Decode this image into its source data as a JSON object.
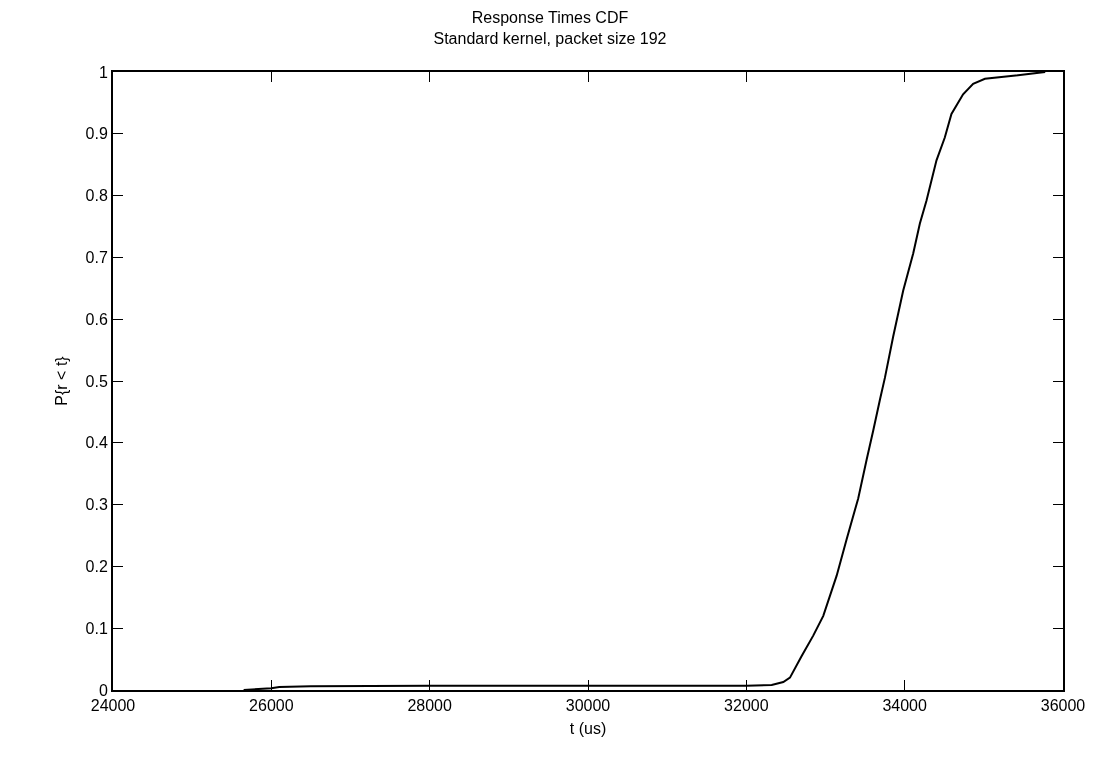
{
  "chart_data": {
    "type": "line",
    "title": "Response Times CDF",
    "subtitle": "Standard kernel, packet size 192",
    "xlabel": "t (us)",
    "ylabel": "P{r < t}",
    "x": [
      25650,
      26000,
      26100,
      26500,
      28000,
      30000,
      32000,
      32320,
      32467,
      32551,
      32699,
      32845,
      32972,
      33141,
      33267,
      33413,
      33520,
      33603,
      33688,
      33750,
      33855,
      33981,
      34107,
      34192,
      34276,
      34402,
      34507,
      34591,
      34738,
      34865,
      35014,
      35371,
      35775
    ],
    "series": [
      {
        "color": "#000000",
        "values": [
          0,
          0.003,
          0.005,
          0.006,
          0.007,
          0.007,
          0.007,
          0.008,
          0.013,
          0.02,
          0.055,
          0.088,
          0.12,
          0.185,
          0.244,
          0.31,
          0.373,
          0.42,
          0.47,
          0.505,
          0.572,
          0.646,
          0.706,
          0.755,
          0.792,
          0.857,
          0.894,
          0.932,
          0.964,
          0.981,
          0.989,
          0.994,
          1
        ]
      }
    ],
    "xlim": [
      24000,
      36000
    ],
    "xticks": [
      24000,
      26000,
      28000,
      30000,
      32000,
      34000,
      36000
    ],
    "ylim": [
      0,
      1
    ],
    "yticks": [
      0,
      0.1,
      0.2,
      0.3,
      0.4,
      0.5,
      0.6,
      0.7,
      0.8,
      0.9,
      1
    ],
    "grid": false,
    "marker": "none",
    "line_style": "solid"
  }
}
